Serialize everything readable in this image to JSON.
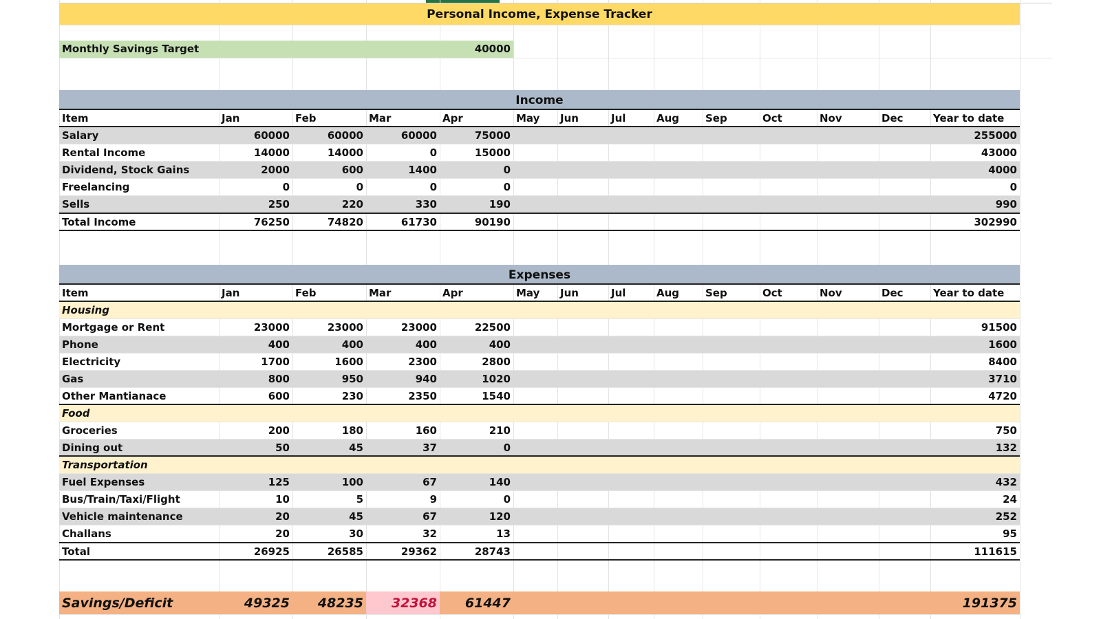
{
  "title": "Personal Income, Expense Tracker",
  "savings_target": {
    "label": "Monthly Savings Target",
    "value": "40000"
  },
  "columns": [
    "Item",
    "Jan",
    "Feb",
    "Mar",
    "Apr",
    "May",
    "Jun",
    "Jul",
    "Aug",
    "Sep",
    "Oct",
    "Nov",
    "Dec",
    "Year to date"
  ],
  "income": {
    "heading": "Income",
    "rows": [
      {
        "item": "Salary",
        "jan": "60000",
        "feb": "60000",
        "mar": "60000",
        "apr": "75000",
        "ytd": "255000"
      },
      {
        "item": "Rental Income",
        "jan": "14000",
        "feb": "14000",
        "mar": "0",
        "apr": "15000",
        "ytd": "43000"
      },
      {
        "item": "Dividend, Stock Gains",
        "jan": "2000",
        "feb": "600",
        "mar": "1400",
        "apr": "0",
        "ytd": "4000"
      },
      {
        "item": "Freelancing",
        "jan": "0",
        "feb": "0",
        "mar": "0",
        "apr": "0",
        "ytd": "0"
      },
      {
        "item": "Sells",
        "jan": "250",
        "feb": "220",
        "mar": "330",
        "apr": "190",
        "ytd": "990"
      }
    ],
    "total": {
      "item": "Total Income",
      "jan": "76250",
      "feb": "74820",
      "mar": "61730",
      "apr": "90190",
      "ytd": "302990"
    }
  },
  "expenses": {
    "heading": "Expenses",
    "categories": {
      "housing": "Housing",
      "food": "Food",
      "transportation": "Transportation"
    },
    "housing_rows": [
      {
        "item": "Mortgage or Rent",
        "jan": "23000",
        "feb": "23000",
        "mar": "23000",
        "apr": "22500",
        "ytd": "91500"
      },
      {
        "item": "Phone",
        "jan": "400",
        "feb": "400",
        "mar": "400",
        "apr": "400",
        "ytd": "1600"
      },
      {
        "item": "Electricity",
        "jan": "1700",
        "feb": "1600",
        "mar": "2300",
        "apr": "2800",
        "ytd": "8400"
      },
      {
        "item": "Gas",
        "jan": "800",
        "feb": "950",
        "mar": "940",
        "apr": "1020",
        "ytd": "3710"
      },
      {
        "item": "Other Mantianace",
        "jan": "600",
        "feb": "230",
        "mar": "2350",
        "apr": "1540",
        "ytd": "4720"
      }
    ],
    "food_rows": [
      {
        "item": "Groceries",
        "jan": "200",
        "feb": "180",
        "mar": "160",
        "apr": "210",
        "ytd": "750"
      },
      {
        "item": "Dining out",
        "jan": "50",
        "feb": "45",
        "mar": "37",
        "apr": "0",
        "ytd": "132"
      }
    ],
    "transport_rows": [
      {
        "item": "Fuel Expenses",
        "jan": "125",
        "feb": "100",
        "mar": "67",
        "apr": "140",
        "ytd": "432"
      },
      {
        "item": "Bus/Train/Taxi/Flight",
        "jan": "10",
        "feb": "5",
        "mar": "9",
        "apr": "0",
        "ytd": "24"
      },
      {
        "item": "Vehicle maintenance",
        "jan": "20",
        "feb": "45",
        "mar": "67",
        "apr": "120",
        "ytd": "252"
      },
      {
        "item": "Challans",
        "jan": "20",
        "feb": "30",
        "mar": "32",
        "apr": "13",
        "ytd": "95"
      }
    ],
    "total": {
      "item": "Total",
      "jan": "26925",
      "feb": "26585",
      "mar": "29362",
      "apr": "28743",
      "ytd": "111615"
    }
  },
  "savings": {
    "label": "Savings/Deficit",
    "jan": "49325",
    "feb": "48235",
    "mar": "32368",
    "apr": "61447",
    "ytd": "191375"
  }
}
